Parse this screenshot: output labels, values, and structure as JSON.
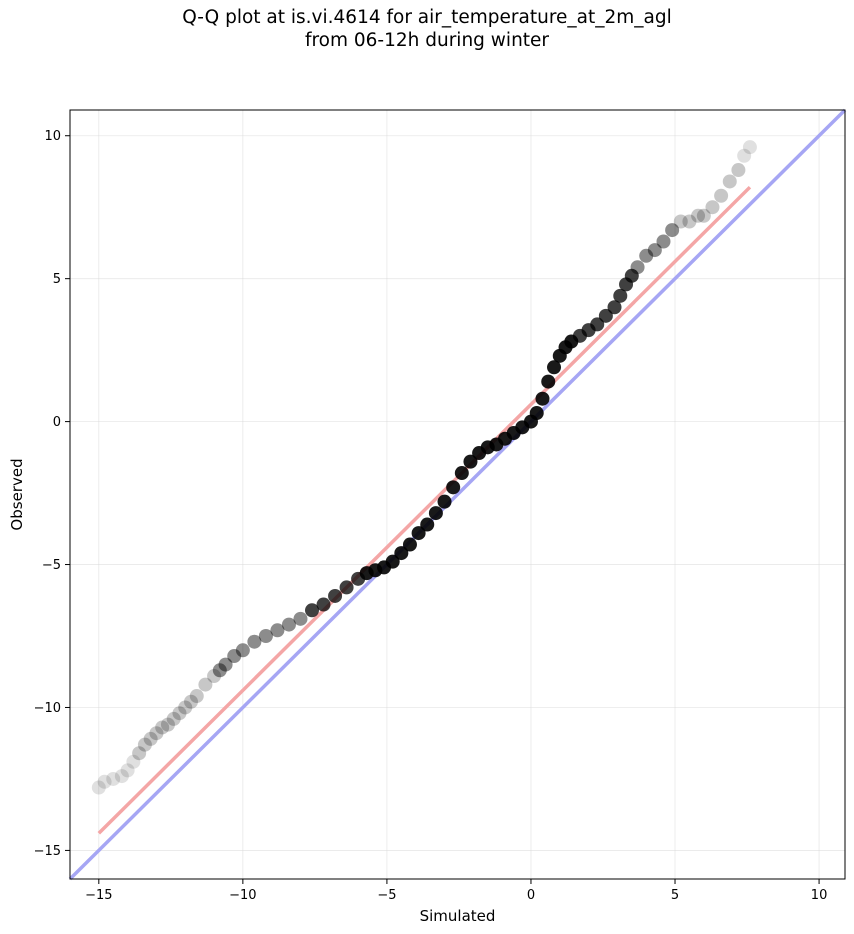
{
  "chart_data": {
    "type": "scatter",
    "title": "Q-Q plot at is.vi.4614 for air_temperature_at_2m_agl",
    "subtitle": "from 06-12h during winter",
    "xlabel": "Simulated",
    "ylabel": "Observed",
    "xlim": [
      -16.0,
      10.9
    ],
    "ylim": [
      -16.0,
      10.9
    ],
    "xticks": [
      -15,
      -10,
      -5,
      0,
      5,
      10
    ],
    "yticks": [
      -15,
      -10,
      -5,
      0,
      5,
      10
    ],
    "xtick_labels": [
      "−15",
      "−10",
      "−5",
      "0",
      "5",
      "10"
    ],
    "ytick_labels": [
      "−15",
      "−10",
      "−5",
      "0",
      "5",
      "10"
    ],
    "grid": true,
    "legend": "none",
    "reference_line": {
      "x": [
        -16.0,
        10.9
      ],
      "y": [
        -16.0,
        10.9
      ],
      "color": "#a6a6f4"
    },
    "fit_line": {
      "x": [
        -15.0,
        7.6
      ],
      "y": [
        -14.4,
        8.2
      ],
      "color": "#f4a6a6"
    },
    "point_color": "#000000",
    "quantiles": {
      "x": [
        -15.0,
        -14.8,
        -14.5,
        -14.2,
        -14.0,
        -13.8,
        -13.6,
        -13.4,
        -13.2,
        -13.0,
        -12.8,
        -12.6,
        -12.4,
        -12.2,
        -12.0,
        -11.8,
        -11.6,
        -11.3,
        -11.0,
        -10.8,
        -10.6,
        -10.3,
        -10.0,
        -9.6,
        -9.2,
        -8.8,
        -8.4,
        -8.0,
        -7.6,
        -7.2,
        -6.8,
        -6.4,
        -6.0,
        -5.7,
        -5.4,
        -5.1,
        -4.8,
        -4.5,
        -4.2,
        -3.9,
        -3.6,
        -3.3,
        -3.0,
        -2.7,
        -2.4,
        -2.1,
        -1.8,
        -1.5,
        -1.2,
        -0.9,
        -0.6,
        -0.3,
        0.0,
        0.2,
        0.4,
        0.6,
        0.8,
        1.0,
        1.2,
        1.4,
        1.7,
        2.0,
        2.3,
        2.6,
        2.9,
        3.1,
        3.3,
        3.5,
        3.7,
        4.0,
        4.3,
        4.6,
        4.9,
        5.2,
        5.5,
        5.8,
        6.0,
        6.3,
        6.6,
        6.9,
        7.2,
        7.4,
        7.6
      ],
      "y": [
        -12.8,
        -12.6,
        -12.5,
        -12.4,
        -12.2,
        -11.9,
        -11.6,
        -11.3,
        -11.1,
        -10.9,
        -10.7,
        -10.6,
        -10.4,
        -10.2,
        -10.0,
        -9.8,
        -9.6,
        -9.2,
        -8.9,
        -8.7,
        -8.5,
        -8.2,
        -8.0,
        -7.7,
        -7.5,
        -7.3,
        -7.1,
        -6.9,
        -6.6,
        -6.4,
        -6.1,
        -5.8,
        -5.5,
        -5.3,
        -5.2,
        -5.1,
        -4.9,
        -4.6,
        -4.3,
        -3.9,
        -3.6,
        -3.2,
        -2.8,
        -2.3,
        -1.8,
        -1.4,
        -1.1,
        -0.9,
        -0.8,
        -0.6,
        -0.4,
        -0.2,
        0.0,
        0.3,
        0.8,
        1.4,
        1.9,
        2.3,
        2.6,
        2.8,
        3.0,
        3.2,
        3.4,
        3.7,
        4.0,
        4.4,
        4.8,
        5.1,
        5.4,
        5.8,
        6.0,
        6.3,
        6.7,
        7.0,
        7.0,
        7.2,
        7.2,
        7.5,
        7.9,
        8.4,
        8.8,
        9.3,
        9.6
      ]
    }
  }
}
